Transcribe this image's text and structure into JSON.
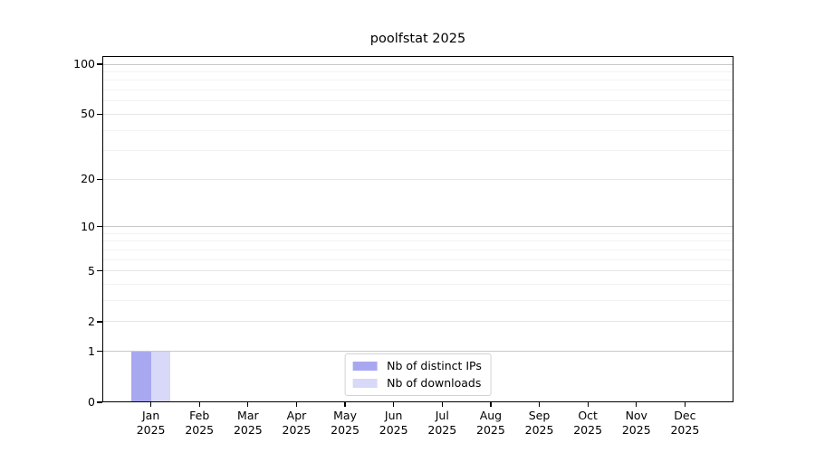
{
  "chart_data": {
    "type": "bar",
    "title": "poolfstat 2025",
    "categories": [
      "Jan 2025",
      "Feb 2025",
      "Mar 2025",
      "Apr 2025",
      "May 2025",
      "Jun 2025",
      "Jul 2025",
      "Aug 2025",
      "Sep 2025",
      "Oct 2025",
      "Nov 2025",
      "Dec 2025"
    ],
    "series": [
      {
        "name": "Nb of distinct IPs",
        "color": "#a8a8f0",
        "values": [
          1,
          0,
          0,
          0,
          0,
          0,
          0,
          0,
          0,
          0,
          0,
          0
        ]
      },
      {
        "name": "Nb of downloads",
        "color": "#d8d8f8",
        "values": [
          1,
          0,
          0,
          0,
          0,
          0,
          0,
          0,
          0,
          0,
          0,
          0
        ]
      }
    ],
    "xlabel": "",
    "ylabel": "",
    "yscale": "log1p",
    "ylim": [
      0,
      112
    ],
    "y_major_ticks": [
      0,
      1,
      2,
      5,
      10,
      20,
      50,
      100
    ],
    "y_minor_ticks": [
      3,
      4,
      6,
      7,
      8,
      9,
      30,
      40,
      60,
      70,
      80,
      90
    ],
    "y_decade_ticks": [
      1,
      10,
      100
    ],
    "grid": "horizontal",
    "legend_position": "lower center",
    "bar_group_width_fraction": 0.8,
    "styling": {
      "background": "#ffffff",
      "spine_color": "#000000",
      "decade_gridline_color": "#c8c8c8",
      "major_gridline_color": "#e6e6e6",
      "minor_gridline_color": "#f2f2f2",
      "text_color": "#000000",
      "legend_border_color": "#d2d2d2"
    }
  }
}
